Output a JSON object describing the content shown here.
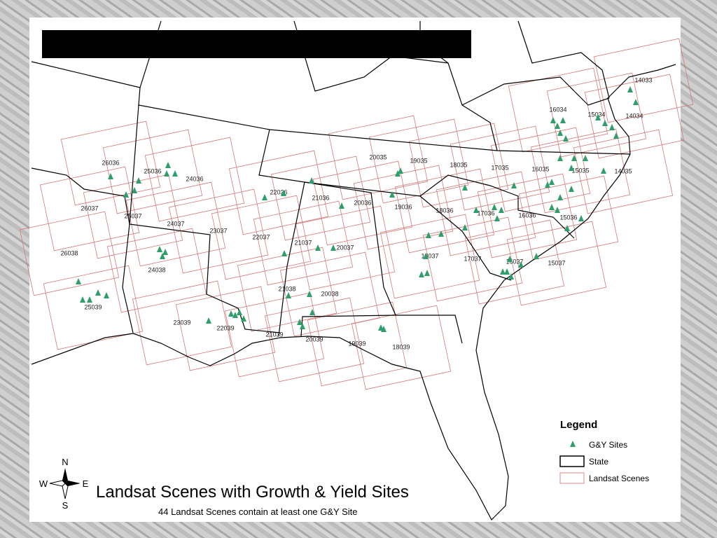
{
  "map": {
    "title": "Landsat Scenes with Growth & Yield Sites",
    "subtitle": "44 Landsat Scenes contain at least one G&Y Site",
    "legend": {
      "title": "Legend",
      "items": [
        "G&Y Sites",
        "State",
        "Landsat Scenes"
      ]
    },
    "compass": {
      "north": "N",
      "south": "S",
      "east": "E",
      "west": "W"
    },
    "scenes": [
      "26036",
      "25036",
      "24036",
      "26037",
      "25037",
      "24037",
      "23037",
      "26038",
      "24038",
      "25039",
      "23039",
      "22039",
      "22036",
      "22037",
      "21036",
      "21037",
      "21038",
      "21039",
      "20035",
      "20036",
      "20037",
      "20038",
      "20039",
      "19035",
      "19036",
      "19039",
      "18035",
      "18036",
      "18037",
      "18039",
      "17035",
      "17036",
      "17037",
      "16034",
      "16035",
      "16036",
      "16037",
      "15034",
      "15035",
      "15036",
      "15037",
      "14033",
      "14034",
      "14035"
    ]
  }
}
